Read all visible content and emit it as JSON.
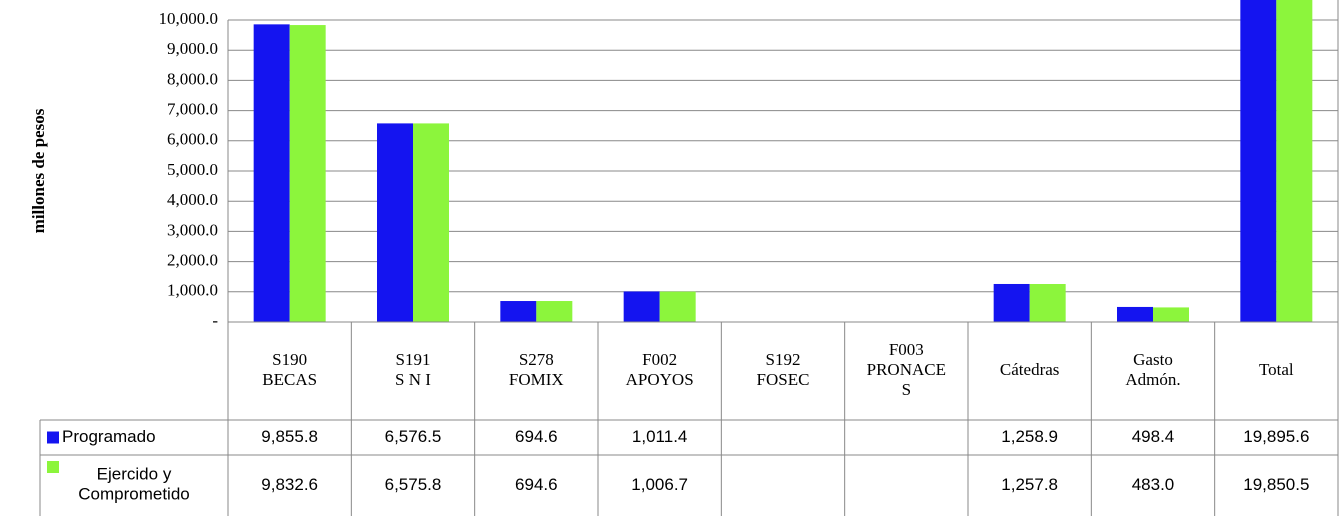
{
  "chart_data": {
    "type": "bar",
    "y_label": "millones de pesos",
    "categories": [
      "S190\nBECAS",
      "S191\nS N I",
      "S278\nFOMIX",
      "F002\nAPOYOS",
      "S192\nFOSEC",
      "F003\nPRONACE\nS",
      "Cátedras",
      "Gasto\nAdmón.",
      "Total"
    ],
    "series": [
      {
        "name": "Programado",
        "color": "#1414f0",
        "values": [
          9855.8,
          6576.5,
          694.6,
          1011.4,
          null,
          null,
          1258.9,
          498.4,
          19895.6
        ],
        "value_labels": [
          "9,855.8",
          "6,576.5",
          "694.6",
          "1,011.4",
          null,
          null,
          "1,258.9",
          "498.4",
          "19,895.6"
        ]
      },
      {
        "name": "Ejercido y\nComprometido",
        "color": "#8cf53c",
        "values": [
          9832.6,
          6575.8,
          694.6,
          1006.7,
          null,
          null,
          1257.8,
          483.0,
          19850.5
        ],
        "value_labels": [
          "9,832.6",
          "6,575.8",
          "694.6",
          "1,006.7",
          null,
          null,
          "1,257.8",
          "483.0",
          "19,850.5"
        ]
      }
    ],
    "ylim": [
      0,
      10000
    ],
    "yticks": [
      {
        "value": 0,
        "label": "-"
      },
      {
        "value": 1000,
        "label": "1,000.0"
      },
      {
        "value": 2000,
        "label": "2,000.0"
      },
      {
        "value": 3000,
        "label": "3,000.0"
      },
      {
        "value": 4000,
        "label": "4,000.0"
      },
      {
        "value": 5000,
        "label": "5,000.0"
      },
      {
        "value": 6000,
        "label": "6,000.0"
      },
      {
        "value": 7000,
        "label": "7,000.0"
      },
      {
        "value": 8000,
        "label": "8,000.0"
      },
      {
        "value": 9000,
        "label": "9,000.0"
      },
      {
        "value": 10000,
        "label": "10,000.0"
      }
    ],
    "grid": true
  }
}
